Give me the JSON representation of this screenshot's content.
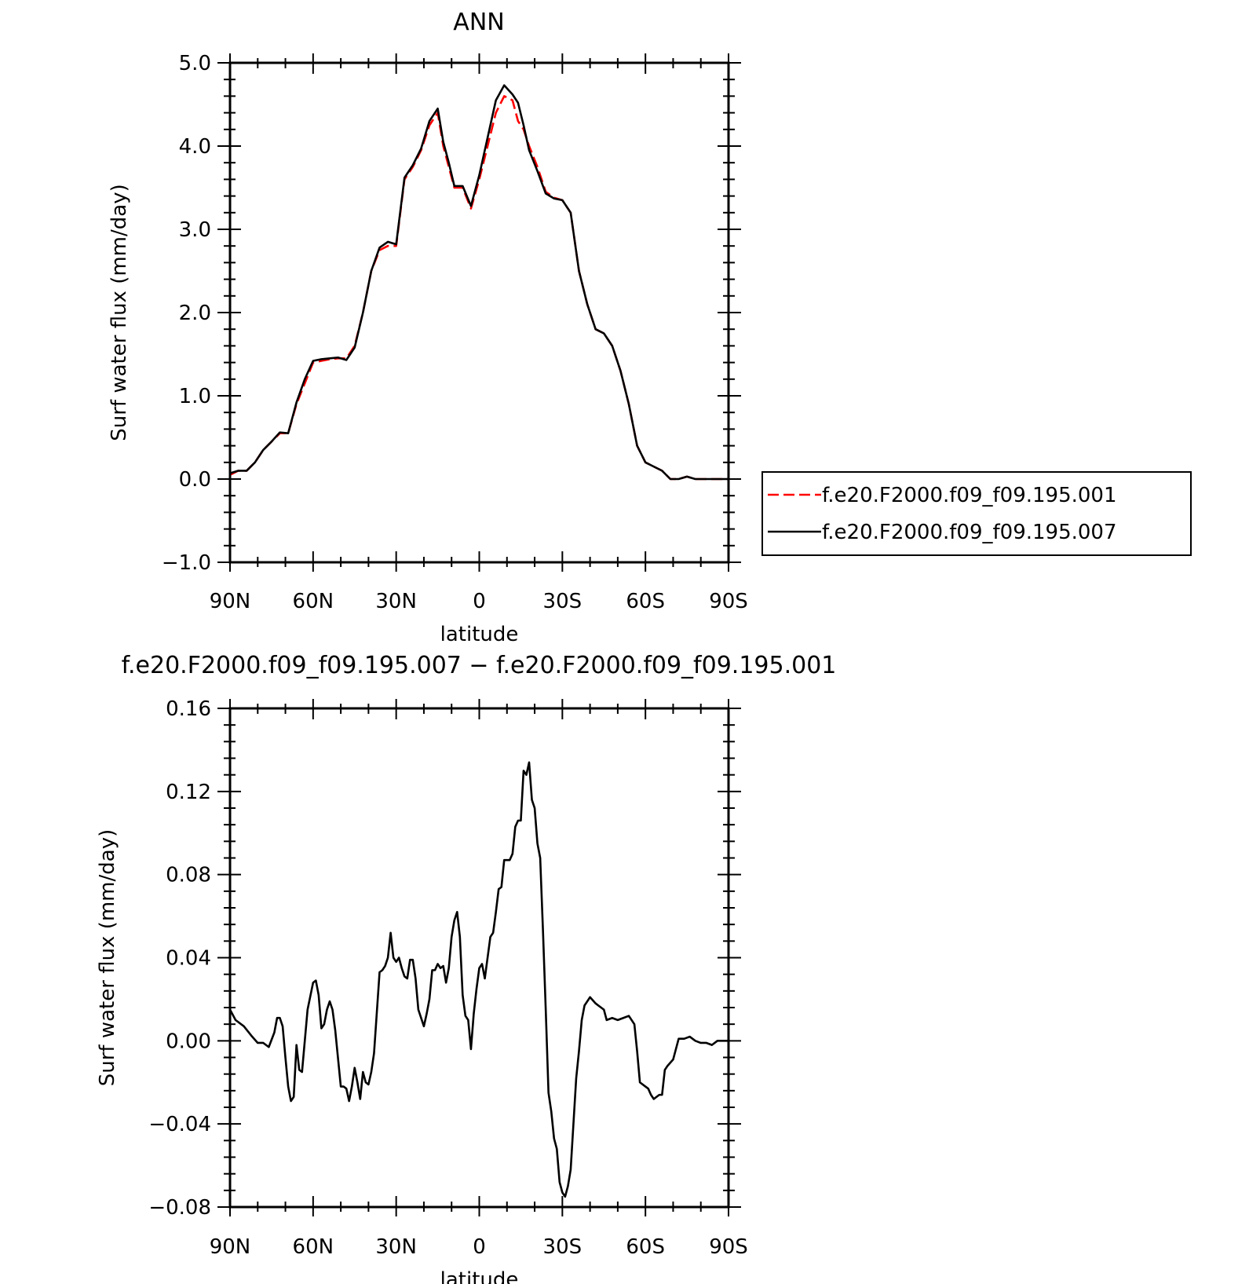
{
  "chart_data": [
    {
      "type": "line",
      "title": "ANN",
      "xlabel": "latitude",
      "ylabel": "Surf water flux (mm/day)",
      "xlim": [
        90,
        -90
      ],
      "ylim": [
        -1.0,
        5.0
      ],
      "x_ticks": [
        90,
        60,
        30,
        0,
        -30,
        -60,
        -90
      ],
      "x_tick_labels": [
        "90N",
        "60N",
        "30N",
        "0",
        "30S",
        "60S",
        "90S"
      ],
      "y_ticks": [
        -1.0,
        0.0,
        1.0,
        2.0,
        3.0,
        4.0,
        5.0
      ],
      "y_tick_labels": [
        "−1.0",
        "0.0",
        "1.0",
        "2.0",
        "3.0",
        "4.0",
        "5.0"
      ],
      "grid": false,
      "legend_position": "right",
      "series": [
        {
          "name": "f.e20.F2000.f09_f09.195.001",
          "color": "#ff0000",
          "dash": "dashed",
          "x": [
            90,
            87,
            84,
            81,
            78,
            75,
            72,
            69,
            66,
            63,
            60,
            57,
            54,
            51,
            48,
            45,
            42,
            39,
            36,
            33,
            30,
            27,
            24,
            21,
            18,
            15,
            13,
            11,
            9,
            6,
            3,
            0,
            -3,
            -6,
            -9,
            -12,
            -14,
            -16,
            -18,
            -21,
            -24,
            -27,
            -30,
            -33,
            -36,
            -39,
            -42,
            -45,
            -48,
            -51,
            -54,
            -57,
            -60,
            -63,
            -66,
            -69,
            -72,
            -75,
            -78,
            -81,
            -84,
            -87,
            -90
          ],
          "y": [
            0.05,
            0.1,
            0.1,
            0.2,
            0.35,
            0.45,
            0.55,
            0.55,
            0.9,
            1.15,
            1.4,
            1.42,
            1.44,
            1.45,
            1.45,
            1.6,
            2.0,
            2.5,
            2.75,
            2.8,
            2.8,
            3.6,
            3.75,
            3.95,
            4.25,
            4.4,
            4.0,
            3.75,
            3.5,
            3.5,
            3.25,
            3.6,
            4.0,
            4.4,
            4.6,
            4.55,
            4.3,
            4.2,
            4.0,
            3.75,
            3.45,
            3.38,
            3.35,
            3.2,
            2.5,
            2.1,
            1.8,
            1.75,
            1.6,
            1.3,
            0.9,
            0.4,
            0.2,
            0.15,
            0.1,
            0.0,
            0.0,
            0.03,
            0.0,
            0.0,
            0.0,
            0.0,
            0.0
          ]
        },
        {
          "name": "f.e20.F2000.f09_f09.195.007",
          "color": "#000000",
          "dash": "solid",
          "x": [
            90,
            87,
            84,
            81,
            78,
            75,
            72,
            69,
            66,
            63,
            60,
            57,
            54,
            51,
            48,
            45,
            42,
            39,
            36,
            33,
            30,
            27,
            24,
            21,
            18,
            15,
            13,
            11,
            9,
            6,
            3,
            0,
            -3,
            -6,
            -9,
            -12,
            -14,
            -16,
            -18,
            -21,
            -24,
            -27,
            -30,
            -33,
            -36,
            -39,
            -42,
            -45,
            -48,
            -51,
            -54,
            -57,
            -60,
            -63,
            -66,
            -69,
            -72,
            -75,
            -78,
            -81,
            -84,
            -87,
            -90
          ],
          "y": [
            0.07,
            0.1,
            0.1,
            0.2,
            0.35,
            0.45,
            0.56,
            0.55,
            0.92,
            1.2,
            1.42,
            1.44,
            1.45,
            1.46,
            1.43,
            1.58,
            2.0,
            2.5,
            2.78,
            2.85,
            2.82,
            3.62,
            3.77,
            3.97,
            4.3,
            4.45,
            4.05,
            3.8,
            3.52,
            3.52,
            3.28,
            3.65,
            4.1,
            4.55,
            4.73,
            4.62,
            4.52,
            4.25,
            3.95,
            3.7,
            3.43,
            3.37,
            3.35,
            3.2,
            2.5,
            2.1,
            1.8,
            1.75,
            1.6,
            1.3,
            0.9,
            0.4,
            0.2,
            0.15,
            0.1,
            0.0,
            0.0,
            0.03,
            0.0,
            0.0,
            0.0,
            0.0,
            0.0
          ]
        }
      ]
    },
    {
      "type": "line",
      "title": "f.e20.F2000.f09_f09.195.007 − f.e20.F2000.f09_f09.195.001",
      "xlabel": "latitude",
      "ylabel": "Surf water flux (mm/day)",
      "xlim": [
        90,
        -90
      ],
      "ylim": [
        -0.08,
        0.16
      ],
      "x_ticks": [
        90,
        60,
        30,
        0,
        -30,
        -60,
        -90
      ],
      "x_tick_labels": [
        "90N",
        "60N",
        "30N",
        "0",
        "30S",
        "60S",
        "90S"
      ],
      "y_ticks": [
        -0.08,
        -0.04,
        0.0,
        0.04,
        0.08,
        0.12,
        0.16
      ],
      "y_tick_labels": [
        "−0.08",
        "−0.04",
        "0.00",
        "0.04",
        "0.08",
        "0.12",
        "0.16"
      ],
      "grid": false,
      "series": [
        {
          "color": "#000000",
          "dash": "solid",
          "x": [
            90,
            88,
            85,
            82,
            80,
            78,
            76,
            74,
            73,
            72,
            71,
            70,
            69,
            68,
            67,
            66,
            65,
            64,
            62,
            60,
            59,
            58,
            57,
            56,
            55,
            54,
            53,
            52,
            50,
            49,
            48,
            47,
            46,
            45,
            44,
            43,
            42,
            41,
            40,
            39,
            38,
            36,
            35,
            34,
            33,
            32,
            31,
            30,
            29,
            28,
            27,
            26,
            25,
            24,
            23,
            22,
            20,
            19,
            18,
            17,
            16,
            15,
            14,
            13,
            12,
            11,
            10,
            9,
            8,
            7,
            6,
            5,
            4,
            3,
            2,
            1,
            0,
            -1,
            -2,
            -3,
            -4,
            -5,
            -6,
            -7,
            -8,
            -9,
            -10,
            -11,
            -12,
            -13,
            -14,
            -15,
            -16,
            -17,
            -18,
            -19,
            -20,
            -21,
            -22,
            -23,
            -24,
            -25,
            -26,
            -27,
            -28,
            -29,
            -30,
            -31,
            -32,
            -33,
            -34,
            -35,
            -36,
            -37,
            -38,
            -40,
            -42,
            -44,
            -45,
            -46,
            -48,
            -50,
            -52,
            -54,
            -56,
            -57,
            -58,
            -60,
            -61,
            -62,
            -63,
            -64,
            -65,
            -66,
            -67,
            -68,
            -70,
            -72,
            -74,
            -76,
            -78,
            -80,
            -82,
            -84,
            -86,
            -88,
            -90
          ],
          "y": [
            0.015,
            0.01,
            0.007,
            0.002,
            -0.001,
            -0.001,
            -0.003,
            0.004,
            0.011,
            0.011,
            0.007,
            -0.008,
            -0.022,
            -0.029,
            -0.027,
            -0.002,
            -0.014,
            -0.015,
            0.015,
            0.028,
            0.029,
            0.022,
            0.006,
            0.008,
            0.015,
            0.019,
            0.015,
            0.005,
            -0.022,
            -0.022,
            -0.023,
            -0.029,
            -0.022,
            -0.013,
            -0.02,
            -0.028,
            -0.015,
            -0.02,
            -0.021,
            -0.015,
            -0.006,
            0.033,
            0.034,
            0.036,
            0.04,
            0.052,
            0.04,
            0.038,
            0.04,
            0.035,
            0.031,
            0.03,
            0.039,
            0.039,
            0.03,
            0.015,
            0.007,
            0.013,
            0.02,
            0.034,
            0.034,
            0.037,
            0.035,
            0.036,
            0.028,
            0.035,
            0.05,
            0.058,
            0.062,
            0.05,
            0.022,
            0.012,
            0.01,
            -0.004,
            0.013,
            0.025,
            0.035,
            0.037,
            0.03,
            0.04,
            0.05,
            0.052,
            0.062,
            0.073,
            0.074,
            0.087,
            0.087,
            0.087,
            0.09,
            0.103,
            0.106,
            0.106,
            0.13,
            0.128,
            0.134,
            0.116,
            0.112,
            0.095,
            0.088,
            0.053,
            0.015,
            -0.025,
            -0.034,
            -0.047,
            -0.052,
            -0.068,
            -0.073,
            -0.075,
            -0.07,
            -0.062,
            -0.04,
            -0.018,
            -0.005,
            0.01,
            0.017,
            0.021,
            0.018,
            0.016,
            0.015,
            0.01,
            0.011,
            0.01,
            0.011,
            0.012,
            0.008,
            -0.005,
            -0.02,
            -0.022,
            -0.023,
            -0.026,
            -0.028,
            -0.027,
            -0.026,
            -0.026,
            -0.014,
            -0.012,
            -0.009,
            0.001,
            0.001,
            0.002,
            0.0,
            -0.001,
            -0.001,
            -0.002,
            0.0,
            0.0,
            0.0
          ]
        }
      ]
    }
  ]
}
